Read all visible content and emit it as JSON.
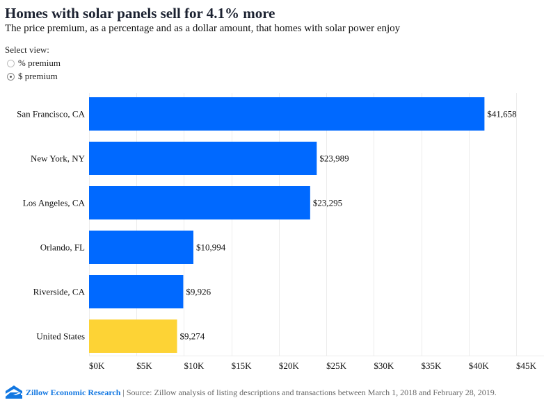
{
  "header": {
    "title": "Homes with solar panels sell for 4.1% more",
    "subtitle": "The price premium, as a percentage and as a dollar amount, that homes with solar power enjoy"
  },
  "view_selector": {
    "label": "Select view:",
    "options": [
      {
        "label": "% premium",
        "selected": false
      },
      {
        "label": "$ premium",
        "selected": true
      }
    ]
  },
  "colors": {
    "metro_bar": "#0069ff",
    "us_bar": "#fdd335",
    "grid": "#ececec",
    "brand": "#1277e1"
  },
  "chart_data": {
    "type": "bar",
    "orientation": "horizontal",
    "categories": [
      "San Francisco, CA",
      "New York, NY",
      "Los Angeles, CA",
      "Orlando, FL",
      "Riverside, CA",
      "United States"
    ],
    "values": [
      41658,
      23989,
      23295,
      10994,
      9926,
      9274
    ],
    "value_labels": [
      "$41,658",
      "$23,989",
      "$23,295",
      "$10,994",
      "$9,926",
      "$9,274"
    ],
    "highlight": [
      "metro",
      "metro",
      "metro",
      "metro",
      "metro",
      "national"
    ],
    "xlim": [
      0,
      45000
    ],
    "xticks": [
      0,
      5000,
      10000,
      15000,
      20000,
      25000,
      30000,
      35000,
      40000,
      45000
    ],
    "xtick_labels": [
      "$0K",
      "$5K",
      "$10K",
      "$15K",
      "$20K",
      "$25K",
      "$30K",
      "$35K",
      "$40K",
      "$45K"
    ],
    "grid": true,
    "title": "Homes with solar panels sell for 4.1% more",
    "xlabel": "",
    "ylabel": ""
  },
  "footer": {
    "brand": "Zillow Economic Research",
    "separator": "|",
    "source": "Source: Zillow analysis of listing descriptions and transactions between March 1, 2018 and February 28, 2019."
  }
}
